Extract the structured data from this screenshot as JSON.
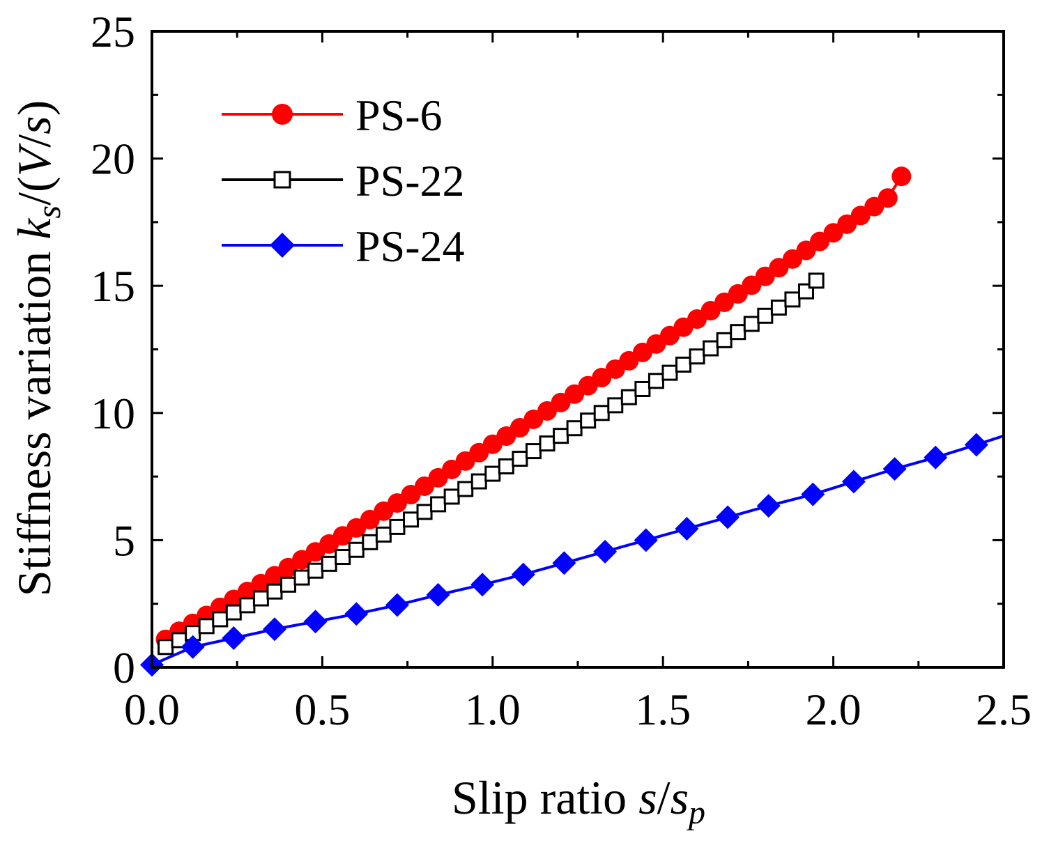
{
  "chart_data": {
    "type": "line",
    "xlabel": {
      "text": "Slip ratio ",
      "var": "s",
      "slash": "/",
      "var2": "s",
      "sub": "p"
    },
    "ylabel": {
      "text": "Stiffness variation ",
      "var": "k",
      "sub": "s",
      "rest1": "/(",
      "var2": "V",
      "rest2": "/",
      "var3": "s",
      "rest3": ")"
    },
    "xlim": [
      0.0,
      2.5
    ],
    "ylim": [
      0,
      25
    ],
    "xticks": [
      0.0,
      0.5,
      1.0,
      1.5,
      2.0,
      2.5
    ],
    "xtick_labels": [
      "0.0",
      "0.5",
      "1.0",
      "1.5",
      "2.0",
      "2.5"
    ],
    "yticks": [
      0,
      5,
      10,
      15,
      20,
      25
    ],
    "ytick_labels": [
      "0",
      "5",
      "10",
      "15",
      "20",
      "25"
    ],
    "legend_position": "top-left",
    "series": [
      {
        "name": "PS-6",
        "color": "#ff0000",
        "marker": "circle",
        "filled": true,
        "x": [
          0.04,
          0.08,
          0.12,
          0.16,
          0.2,
          0.24,
          0.28,
          0.32,
          0.36,
          0.4,
          0.44,
          0.48,
          0.52,
          0.56,
          0.6,
          0.64,
          0.68,
          0.72,
          0.76,
          0.8,
          0.84,
          0.88,
          0.92,
          0.96,
          1.0,
          1.04,
          1.08,
          1.12,
          1.16,
          1.2,
          1.24,
          1.28,
          1.32,
          1.36,
          1.4,
          1.44,
          1.48,
          1.52,
          1.56,
          1.6,
          1.64,
          1.68,
          1.72,
          1.76,
          1.8,
          1.84,
          1.88,
          1.92,
          1.96,
          2.0,
          2.04,
          2.08,
          2.12,
          2.16,
          2.2
        ],
        "y": [
          1.1,
          1.42,
          1.73,
          2.04,
          2.36,
          2.67,
          2.98,
          3.29,
          3.6,
          3.92,
          4.23,
          4.54,
          4.85,
          5.17,
          5.48,
          5.81,
          6.14,
          6.46,
          6.79,
          7.12,
          7.45,
          7.78,
          8.11,
          8.44,
          8.77,
          9.09,
          9.42,
          9.75,
          10.08,
          10.41,
          10.74,
          11.07,
          11.39,
          11.72,
          12.05,
          12.38,
          12.71,
          13.04,
          13.37,
          13.69,
          14.02,
          14.35,
          14.68,
          15.02,
          15.37,
          15.71,
          16.05,
          16.39,
          16.74,
          17.08,
          17.42,
          17.76,
          18.11,
          18.45,
          19.3
        ]
      },
      {
        "name": "PS-22",
        "color": "#000000",
        "marker": "square",
        "filled": false,
        "x": [
          0.04,
          0.08,
          0.12,
          0.16,
          0.2,
          0.24,
          0.28,
          0.32,
          0.36,
          0.4,
          0.44,
          0.48,
          0.52,
          0.56,
          0.6,
          0.64,
          0.68,
          0.72,
          0.76,
          0.8,
          0.84,
          0.88,
          0.92,
          0.96,
          1.0,
          1.04,
          1.08,
          1.12,
          1.16,
          1.2,
          1.24,
          1.28,
          1.32,
          1.36,
          1.4,
          1.44,
          1.48,
          1.52,
          1.56,
          1.6,
          1.64,
          1.68,
          1.72,
          1.76,
          1.8,
          1.84,
          1.88,
          1.92,
          1.95
        ],
        "y": [
          0.8,
          1.07,
          1.35,
          1.62,
          1.89,
          2.16,
          2.44,
          2.71,
          2.98,
          3.25,
          3.53,
          3.8,
          4.07,
          4.34,
          4.62,
          4.92,
          5.22,
          5.52,
          5.81,
          6.11,
          6.41,
          6.71,
          7.01,
          7.31,
          7.61,
          7.9,
          8.2,
          8.5,
          8.8,
          9.1,
          9.4,
          9.7,
          10.0,
          10.3,
          10.62,
          10.94,
          11.26,
          11.58,
          11.9,
          12.22,
          12.54,
          12.86,
          13.18,
          13.5,
          13.82,
          14.14,
          14.46,
          14.78,
          15.2
        ]
      },
      {
        "name": "PS-24",
        "color": "#0000ff",
        "marker": "diamond",
        "filled": true,
        "line_to": [
          2.5,
          9.1
        ],
        "x": [
          0.0,
          0.12,
          0.24,
          0.36,
          0.48,
          0.6,
          0.72,
          0.84,
          0.97,
          1.09,
          1.21,
          1.33,
          1.45,
          1.57,
          1.69,
          1.81,
          1.94,
          2.06,
          2.18,
          2.3,
          2.42
        ],
        "y": [
          0.1,
          0.8,
          1.15,
          1.5,
          1.8,
          2.1,
          2.45,
          2.85,
          3.25,
          3.65,
          4.1,
          4.55,
          5.0,
          5.45,
          5.9,
          6.35,
          6.8,
          7.3,
          7.8,
          8.25,
          8.75
        ]
      }
    ]
  }
}
